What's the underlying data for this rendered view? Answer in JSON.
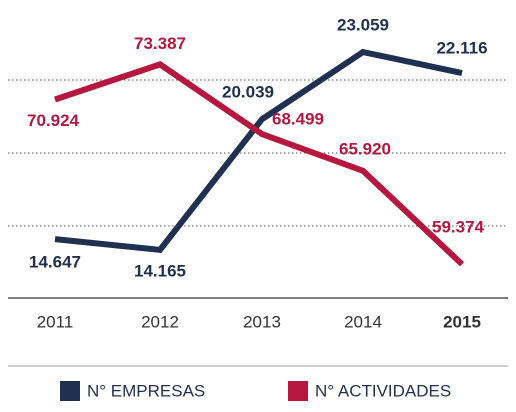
{
  "chart_data": {
    "type": "line",
    "categories": [
      "2011",
      "2012",
      "2013",
      "2014",
      "2015"
    ],
    "series": [
      {
        "name": "N° EMPRESAS",
        "color": "#1f3050",
        "values": [
          14647,
          14165,
          20039,
          23059,
          22116
        ],
        "value_labels": [
          "14.647",
          "14.165",
          "20.039",
          "23.059",
          "22.116"
        ]
      },
      {
        "name": "N° ACTIVIDADES",
        "color": "#b5173f",
        "axis": "y2",
        "values": [
          70924,
          73387,
          68499,
          65920,
          59374
        ],
        "value_labels": [
          "70.924",
          "73.387",
          "68.499",
          "65.920",
          "59.374"
        ]
      }
    ],
    "ylim": [
      12000,
      24500
    ],
    "y2lim": [
      57000,
      76500
    ],
    "legend": "bottom"
  }
}
